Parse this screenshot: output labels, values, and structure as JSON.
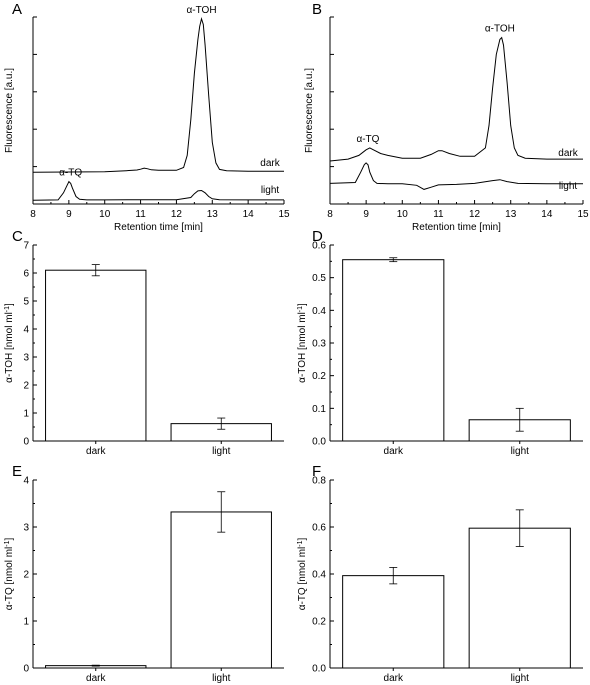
{
  "chart_data": [
    {
      "panel": "A",
      "type": "line",
      "xlabel": "Retention time [min]",
      "ylabel": "Fluorescence [a.u.]",
      "xlim": [
        8,
        15
      ],
      "ylim": [
        0,
        100
      ],
      "x_ticks": [
        8,
        9,
        10,
        11,
        12,
        13,
        14,
        15
      ],
      "series": [
        {
          "name": "dark",
          "x": [
            8.0,
            10.0,
            10.6,
            10.9,
            11.0,
            11.1,
            11.2,
            11.3,
            11.5,
            12.0,
            12.2,
            12.3,
            12.4,
            12.5,
            12.6,
            12.65,
            12.7,
            12.75,
            12.8,
            12.9,
            13.0,
            13.1,
            13.2,
            13.4,
            14.0,
            15.0
          ],
          "y": [
            17.0,
            17.2,
            17.8,
            18.2,
            18.6,
            19.2,
            18.8,
            18.3,
            18.0,
            18.0,
            19.5,
            26.0,
            45.0,
            70.0,
            88.0,
            95.0,
            99.0,
            96.0,
            85.0,
            58.0,
            33.0,
            22.0,
            18.5,
            17.8,
            17.5,
            17.5
          ]
        },
        {
          "name": "light",
          "x": [
            8.0,
            8.7,
            8.85,
            8.95,
            9.0,
            9.05,
            9.1,
            9.2,
            9.3,
            9.5,
            10.0,
            11.0,
            12.0,
            12.4,
            12.5,
            12.6,
            12.7,
            12.8,
            12.9,
            13.0,
            13.2,
            14.0,
            15.0
          ],
          "y": [
            2.0,
            2.2,
            6.0,
            10.0,
            12.0,
            11.0,
            8.5,
            4.0,
            2.5,
            2.2,
            2.2,
            2.3,
            2.3,
            3.5,
            5.5,
            7.0,
            7.2,
            6.0,
            4.0,
            2.8,
            2.3,
            2.2,
            2.2
          ]
        }
      ],
      "annotations": [
        {
          "text": "α-TOH",
          "x": 12.7,
          "y": 99
        },
        {
          "text": "α-TQ",
          "x": 9.05,
          "y": 12
        }
      ]
    },
    {
      "panel": "B",
      "type": "line",
      "xlabel": "Retention time [min]",
      "ylabel": "Fluorescence [a.u.]",
      "xlim": [
        8,
        15
      ],
      "ylim": [
        0,
        100
      ],
      "x_ticks": [
        8,
        9,
        10,
        11,
        12,
        13,
        14,
        15
      ],
      "series": [
        {
          "name": "dark",
          "x": [
            8.0,
            8.5,
            8.8,
            9.0,
            9.1,
            9.2,
            9.4,
            9.6,
            10.0,
            10.5,
            10.8,
            11.0,
            11.1,
            11.3,
            11.6,
            12.0,
            12.3,
            12.4,
            12.5,
            12.6,
            12.7,
            12.75,
            12.8,
            12.9,
            13.0,
            13.1,
            13.2,
            13.4,
            14.0,
            15.0
          ],
          "y": [
            23.0,
            24.0,
            26.0,
            29.0,
            30.0,
            29.0,
            27.0,
            26.0,
            24.5,
            24.5,
            26.5,
            28.5,
            28.5,
            27.0,
            25.5,
            25.5,
            30.0,
            42.0,
            62.0,
            80.0,
            88.0,
            89.0,
            85.0,
            65.0,
            42.0,
            30.0,
            26.0,
            24.5,
            24.0,
            24.0
          ]
        },
        {
          "name": "light",
          "x": [
            8.0,
            8.7,
            8.85,
            8.95,
            9.0,
            9.05,
            9.1,
            9.2,
            9.3,
            9.6,
            10.0,
            10.4,
            10.6,
            10.8,
            11.0,
            11.5,
            12.0,
            12.5,
            12.7,
            12.9,
            13.2,
            14.0,
            15.0
          ],
          "y": [
            11.0,
            11.5,
            17.0,
            21.0,
            22.0,
            21.0,
            17.0,
            12.5,
            11.0,
            10.8,
            10.8,
            10.0,
            7.8,
            9.0,
            10.2,
            10.5,
            11.0,
            12.5,
            13.0,
            12.0,
            11.0,
            10.8,
            10.8
          ]
        }
      ],
      "annotations": [
        {
          "text": "α-TOH",
          "x": 12.7,
          "y": 89
        },
        {
          "text": "α-TQ",
          "x": 9.05,
          "y": 30
        }
      ]
    },
    {
      "panel": "C",
      "type": "bar",
      "categories": [
        "dark",
        "light"
      ],
      "values": [
        6.1,
        0.62
      ],
      "errors": [
        0.2,
        0.2
      ],
      "ylabel": "α-TOH [nmol ml⁻¹]",
      "ylim": [
        0,
        7
      ],
      "y_ticks": [
        0,
        1,
        2,
        3,
        4,
        5,
        6,
        7
      ]
    },
    {
      "panel": "D",
      "type": "bar",
      "categories": [
        "dark",
        "light"
      ],
      "values": [
        0.555,
        0.065
      ],
      "errors": [
        0.006,
        0.035
      ],
      "ylabel": "α-TOH [nmol ml⁻¹]",
      "ylim": [
        0,
        0.6
      ],
      "y_ticks": [
        0.0,
        0.1,
        0.2,
        0.3,
        0.4,
        0.5,
        0.6
      ],
      "y_tick_labels": [
        "0.0",
        "0.1",
        "0.2",
        "0.3",
        "0.4",
        "0.5",
        "0.6"
      ]
    },
    {
      "panel": "E",
      "type": "bar",
      "categories": [
        "dark",
        "light"
      ],
      "values": [
        0.05,
        3.32
      ],
      "errors": [
        0.01,
        0.43
      ],
      "ylabel": "α-TQ [nmol ml⁻¹]",
      "ylim": [
        0,
        4
      ],
      "y_ticks": [
        0,
        1,
        2,
        3,
        4
      ]
    },
    {
      "panel": "F",
      "type": "bar",
      "categories": [
        "dark",
        "light"
      ],
      "values": [
        0.393,
        0.595
      ],
      "errors": [
        0.035,
        0.078
      ],
      "ylabel": "α-TQ [nmol ml⁻¹]",
      "ylim": [
        0,
        0.8
      ],
      "y_ticks": [
        0.0,
        0.2,
        0.4,
        0.6,
        0.8
      ],
      "y_tick_labels": [
        "0.0",
        "0.2",
        "0.4",
        "0.6",
        "0.8"
      ]
    }
  ]
}
